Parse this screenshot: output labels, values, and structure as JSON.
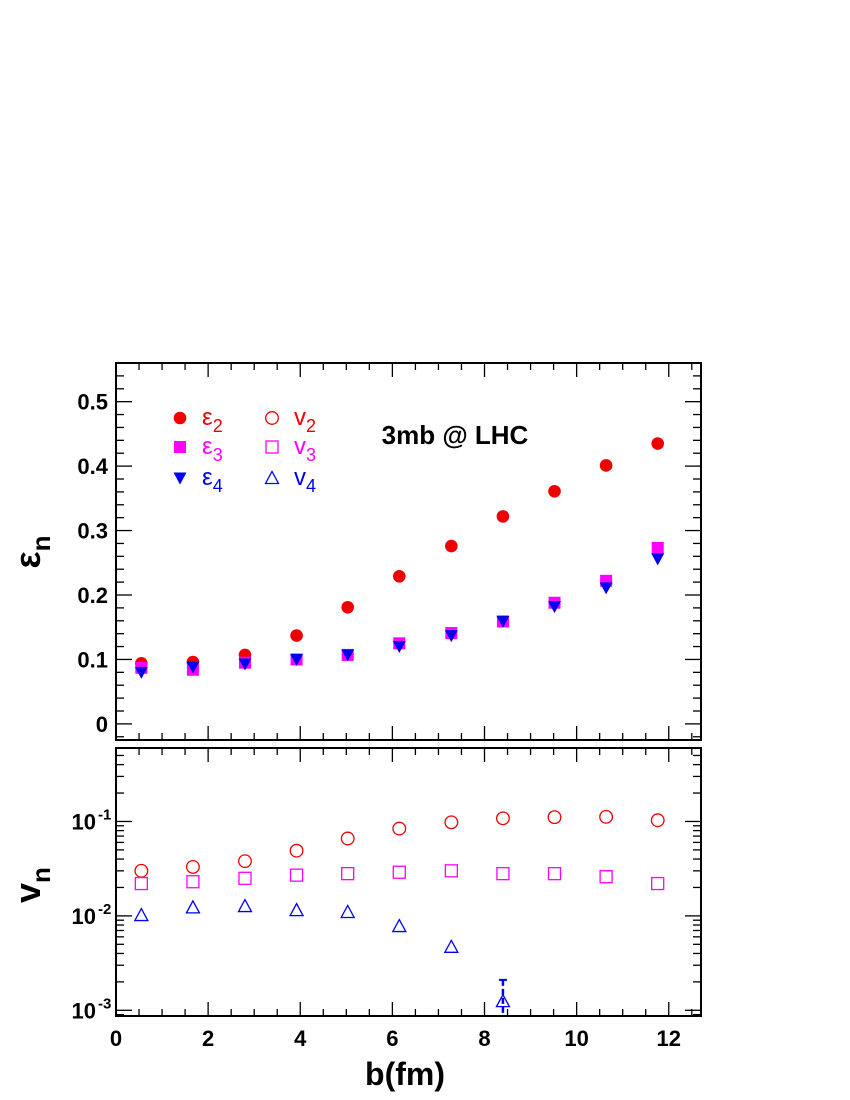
{
  "chart_data": [
    {
      "type": "scatter",
      "annotation": "3mb @ LHC",
      "ylabel": "ε",
      "ylabel_sub": "n",
      "xlim": [
        0,
        12.7
      ],
      "ylim": [
        -0.025,
        0.56
      ],
      "yticks": [
        0,
        0.1,
        0.2,
        0.3,
        0.4,
        0.5
      ],
      "ytick_labels": [
        "0",
        "0.1",
        "0.2",
        "0.3",
        "0.4",
        "0.5"
      ],
      "x": [
        0.55,
        1.67,
        2.8,
        3.92,
        5.03,
        6.15,
        7.28,
        8.4,
        9.52,
        10.64,
        11.76
      ],
      "series": [
        {
          "name": "ε",
          "sub": "2",
          "color": "#ee0000",
          "marker": "filled-circle",
          "values": [
            0.094,
            0.096,
            0.107,
            0.137,
            0.181,
            0.229,
            0.276,
            0.322,
            0.361,
            0.401,
            0.435
          ]
        },
        {
          "name": "ε",
          "sub": "3",
          "color": "#ff00ff",
          "marker": "filled-square",
          "values": [
            0.087,
            0.084,
            0.095,
            0.1,
            0.107,
            0.125,
            0.141,
            0.159,
            0.188,
            0.222,
            0.273
          ]
        },
        {
          "name": "ε",
          "sub": "4",
          "color": "#0000ee",
          "marker": "filled-triangle-down",
          "values": [
            0.08,
            0.088,
            0.093,
            0.1,
            0.107,
            0.12,
            0.137,
            0.159,
            0.182,
            0.211,
            0.256
          ]
        }
      ],
      "legend_placement": "top-left"
    },
    {
      "type": "scatter",
      "ylabel": "v",
      "ylabel_sub": "n",
      "y_scale": "log",
      "xlabel": "b(fm)",
      "xlim": [
        0,
        12.7
      ],
      "xticks": [
        0,
        2,
        4,
        6,
        8,
        10,
        12
      ],
      "xtick_labels": [
        "0",
        "2",
        "4",
        "6",
        "8",
        "10",
        "12"
      ],
      "ylim": [
        0.00087,
        0.6
      ],
      "yticks": [
        0.1,
        0.01,
        0.001
      ],
      "ytick_labels": [
        {
          "base": "10",
          "exp": "-1"
        },
        {
          "base": "10",
          "exp": "-2"
        },
        {
          "base": "10",
          "exp": "-3"
        }
      ],
      "x": [
        0.55,
        1.67,
        2.8,
        3.92,
        5.03,
        6.15,
        7.28,
        8.4,
        9.52,
        10.64,
        11.76
      ],
      "series": [
        {
          "name": "v",
          "sub": "2",
          "color": "#ee0000",
          "marker": "open-circle",
          "values": [
            0.03,
            0.033,
            0.038,
            0.049,
            0.066,
            0.084,
            0.098,
            0.108,
            0.111,
            0.112,
            0.103
          ]
        },
        {
          "name": "v",
          "sub": "3",
          "color": "#ff00ff",
          "marker": "open-square",
          "values": [
            0.022,
            0.023,
            0.025,
            0.027,
            0.028,
            0.029,
            0.03,
            0.028,
            0.028,
            0.026,
            0.022
          ]
        },
        {
          "name": "v",
          "sub": "4",
          "color": "#0000ee",
          "marker": "open-triangle-up",
          "values": [
            0.0102,
            0.0123,
            0.0127,
            0.0115,
            0.011,
            0.0078,
            0.0047,
            0.00125,
            null,
            null,
            null
          ],
          "error_bars": [
            {
              "x": 8.4,
              "low": 0.00087,
              "high": 0.0021
            }
          ]
        }
      ]
    }
  ]
}
